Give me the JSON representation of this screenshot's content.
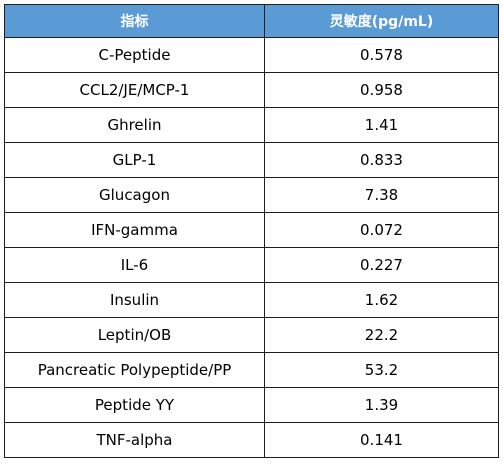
{
  "header": {
    "col_indicator": "指标",
    "col_sensitivity": "灵敏度(pg/mL)"
  },
  "rows": [
    {
      "name": "C-Peptide",
      "value": "0.578"
    },
    {
      "name": "CCL2/JE/MCP-1",
      "value": "0.958"
    },
    {
      "name": "Ghrelin",
      "value": "1.41"
    },
    {
      "name": "GLP-1",
      "value": "0.833"
    },
    {
      "name": "Glucagon",
      "value": "7.38"
    },
    {
      "name": "IFN-gamma",
      "value": "0.072"
    },
    {
      "name": "IL-6",
      "value": "0.227"
    },
    {
      "name": "Insulin",
      "value": "1.62"
    },
    {
      "name": "Leptin/OB",
      "value": "22.2"
    },
    {
      "name": "Pancreatic Polypeptide/PP",
      "value": "53.2"
    },
    {
      "name": "Peptide YY",
      "value": "1.39"
    },
    {
      "name": "TNF-alpha",
      "value": "0.141"
    }
  ],
  "colors": {
    "header_bg": "#5b9bd5",
    "header_text": "#ffffff",
    "border": "#1e1e1e"
  }
}
